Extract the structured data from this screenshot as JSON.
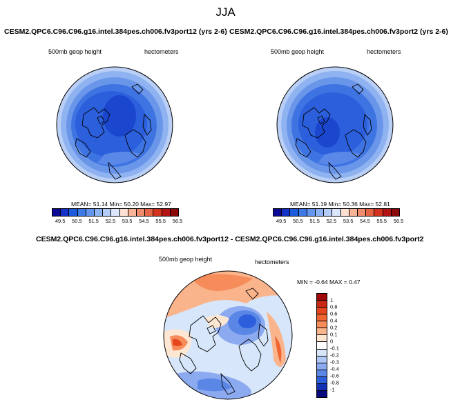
{
  "title": "JJA",
  "panels": [
    {
      "title": "CESM2.QPC6.C96.C96.g16.intel.384pes.ch006.fv3port12 (yrs 2-6)",
      "var_label": "500mb geop height",
      "units": "hectometers",
      "stats": "MEAN=  51.14  Min=  50.20  Max=  52.97"
    },
    {
      "title": "CESM2.QPC6.C96.C96.g16.intel.384pes.ch006.fv3port2 (yrs 2-6)",
      "var_label": "500mb geop height",
      "units": "hectometers",
      "stats": "MEAN=  51.19  Min=  50.36  Max=  52.81"
    }
  ],
  "colorbar_top": {
    "ticks": [
      "49.5",
      "50.5",
      "51.5",
      "52.5",
      "53.5",
      "54.5",
      "55.5",
      "56.5"
    ],
    "colors": [
      "#0a0a94",
      "#1432c8",
      "#1e5adc",
      "#3c78e6",
      "#6496f0",
      "#8cb4f5",
      "#b4cdf8",
      "#dce6fa",
      "#fde0d2",
      "#f8b496",
      "#f08c6e",
      "#e66446",
      "#d2321e",
      "#b41414",
      "#8c0a0a"
    ]
  },
  "diff": {
    "title": "CESM2.QPC6.C96.C96.g16.intel.384pes.ch006.fv3port12 - CESM2.QPC6.C96.C96.g16.intel.384pes.ch006.fv3port2",
    "var_label": "500mb geop height",
    "units": "hectometers",
    "stats": "MIN =  -0.64 MAX =  0.47",
    "ticks": [
      "1",
      "0.8",
      "0.6",
      "0.4",
      "0.2",
      "0.1",
      "0",
      "-0.1",
      "-0.2",
      "-0.3",
      "-0.4",
      "-0.6",
      "-0.8",
      "-1"
    ],
    "colors": [
      "#a00a0a",
      "#c82814",
      "#e6461e",
      "#f06432",
      "#f58c5a",
      "#fab48c",
      "#fde6d2",
      "#ffffff",
      "#d7e6fa",
      "#afc8f5",
      "#8caaf0",
      "#5a87e6",
      "#2d5fdc",
      "#1432b4",
      "#0a0a80"
    ]
  }
}
